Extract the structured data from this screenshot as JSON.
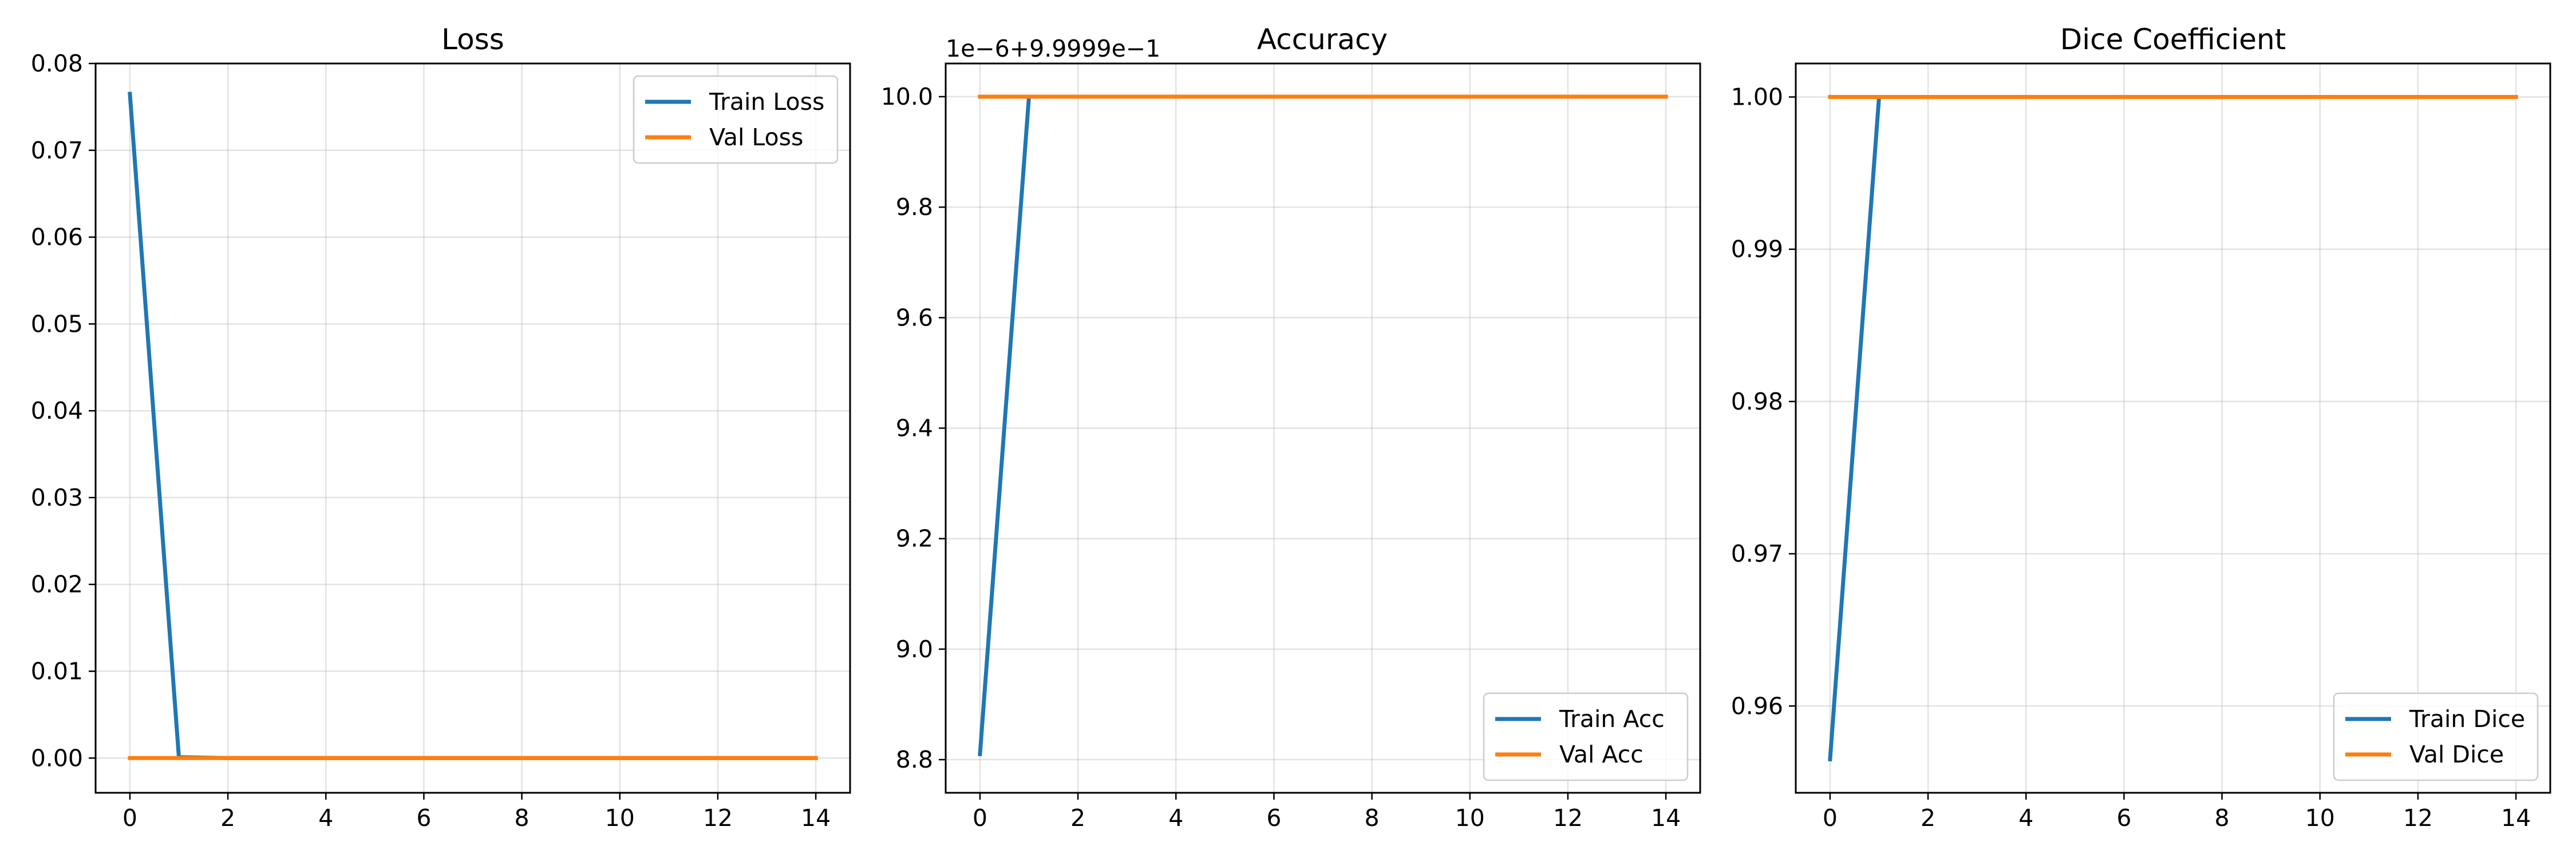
{
  "colors": {
    "train": "#1f77b4",
    "val": "#ff7f0e"
  },
  "chart_data": [
    {
      "type": "line",
      "title": "Loss",
      "xlim": [
        -0.7,
        14.7
      ],
      "ylim": [
        -0.004,
        0.08
      ],
      "x_ticks": [
        0,
        2,
        4,
        6,
        8,
        10,
        12,
        14
      ],
      "x_tick_labels": [
        "0",
        "2",
        "4",
        "6",
        "8",
        "10",
        "12",
        "14"
      ],
      "y_ticks": [
        0.0,
        0.01,
        0.02,
        0.03,
        0.04,
        0.05,
        0.06,
        0.07,
        0.08
      ],
      "y_tick_labels": [
        "0.00",
        "0.01",
        "0.02",
        "0.03",
        "0.04",
        "0.05",
        "0.06",
        "0.07",
        "0.08"
      ],
      "y_offset_label": "",
      "grid": true,
      "legend": "upper right",
      "x": [
        0,
        1,
        2,
        3,
        4,
        5,
        6,
        7,
        8,
        9,
        10,
        11,
        12,
        13,
        14
      ],
      "series": [
        {
          "name": "Train Loss",
          "color": "#1f77b4",
          "values": [
            0.0765,
            0.0001,
            0.0,
            0.0,
            0.0,
            0.0,
            0.0,
            0.0,
            0.0,
            0.0,
            0.0,
            0.0,
            0.0,
            0.0,
            0.0
          ]
        },
        {
          "name": "Val Loss",
          "color": "#ff7f0e",
          "values": [
            0.0,
            0.0,
            0.0,
            0.0,
            0.0,
            0.0,
            0.0,
            0.0,
            0.0,
            0.0,
            0.0,
            0.0,
            0.0,
            0.0,
            0.0
          ]
        }
      ]
    },
    {
      "type": "line",
      "title": "Accuracy",
      "xlim": [
        -0.7,
        14.7
      ],
      "ylim": [
        8.74,
        10.06
      ],
      "x_ticks": [
        0,
        2,
        4,
        6,
        8,
        10,
        12,
        14
      ],
      "x_tick_labels": [
        "0",
        "2",
        "4",
        "6",
        "8",
        "10",
        "12",
        "14"
      ],
      "y_ticks": [
        8.8,
        9.0,
        9.2,
        9.4,
        9.6,
        9.8,
        10.0
      ],
      "y_tick_labels": [
        "8.8",
        "9.0",
        "9.2",
        "9.4",
        "9.6",
        "9.8",
        "10.0"
      ],
      "y_offset_label": "1e−6+9.9999e−1",
      "grid": true,
      "legend": "lower right",
      "x": [
        0,
        1,
        2,
        3,
        4,
        5,
        6,
        7,
        8,
        9,
        10,
        11,
        12,
        13,
        14
      ],
      "series": [
        {
          "name": "Train Acc",
          "color": "#1f77b4",
          "values": [
            8.81,
            10.0,
            10.0,
            10.0,
            10.0,
            10.0,
            10.0,
            10.0,
            10.0,
            10.0,
            10.0,
            10.0,
            10.0,
            10.0,
            10.0
          ]
        },
        {
          "name": "Val Acc",
          "color": "#ff7f0e",
          "values": [
            10.0,
            10.0,
            10.0,
            10.0,
            10.0,
            10.0,
            10.0,
            10.0,
            10.0,
            10.0,
            10.0,
            10.0,
            10.0,
            10.0,
            10.0
          ]
        }
      ]
    },
    {
      "type": "line",
      "title": "Dice Coefficient",
      "xlim": [
        -0.7,
        14.7
      ],
      "ylim": [
        0.9543,
        1.0022
      ],
      "x_ticks": [
        0,
        2,
        4,
        6,
        8,
        10,
        12,
        14
      ],
      "x_tick_labels": [
        "0",
        "2",
        "4",
        "6",
        "8",
        "10",
        "12",
        "14"
      ],
      "y_ticks": [
        0.96,
        0.97,
        0.98,
        0.99,
        1.0
      ],
      "y_tick_labels": [
        "0.96",
        "0.97",
        "0.98",
        "0.99",
        "1.00"
      ],
      "y_offset_label": "",
      "grid": true,
      "legend": "lower right",
      "x": [
        0,
        1,
        2,
        3,
        4,
        5,
        6,
        7,
        8,
        9,
        10,
        11,
        12,
        13,
        14
      ],
      "series": [
        {
          "name": "Train Dice",
          "color": "#1f77b4",
          "values": [
            0.9565,
            1.0,
            1.0,
            1.0,
            1.0,
            1.0,
            1.0,
            1.0,
            1.0,
            1.0,
            1.0,
            1.0,
            1.0,
            1.0,
            1.0
          ]
        },
        {
          "name": "Val Dice",
          "color": "#ff7f0e",
          "values": [
            1.0,
            1.0,
            1.0,
            1.0,
            1.0,
            1.0,
            1.0,
            1.0,
            1.0,
            1.0,
            1.0,
            1.0,
            1.0,
            1.0,
            1.0
          ]
        }
      ]
    }
  ]
}
